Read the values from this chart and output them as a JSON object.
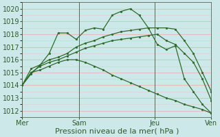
{
  "background_color": "#cce8e8",
  "plot_bg_color": "#cce8e8",
  "grid_color_major": "#e8b8b8",
  "grid_color_minor": "#e8c8c8",
  "line_color": "#2d6a2d",
  "marker_color": "#2d6a2d",
  "xlabel": "Pression niveau de la mer( hPa )",
  "ylim": [
    1011.5,
    1020.5
  ],
  "yticks": [
    1012,
    1013,
    1014,
    1015,
    1016,
    1017,
    1018,
    1019,
    1020
  ],
  "xtick_labels": [
    "Mer",
    "Sam",
    "Jeu",
    "Ven"
  ],
  "xtick_positions": [
    0,
    3,
    7,
    10
  ],
  "series": [
    [
      1014.0,
      1014.9,
      1015.6,
      1016.5,
      1018.1,
      1018.1,
      1017.6,
      1018.3,
      1018.5,
      1018.4,
      1019.5,
      1019.8,
      1020.0,
      1019.5,
      1018.5,
      1017.2,
      1016.8,
      1017.1,
      1014.5,
      1013.5,
      1012.5,
      1011.8
    ],
    [
      1014.0,
      1015.3,
      1015.6,
      1016.0,
      1016.2,
      1016.5,
      1017.0,
      1017.3,
      1017.5,
      1017.8,
      1018.0,
      1018.2,
      1018.3,
      1018.4,
      1018.5,
      1018.5,
      1018.5,
      1018.4,
      1017.5,
      1016.5,
      1015.0,
      1013.5
    ],
    [
      1014.0,
      1015.0,
      1015.5,
      1015.8,
      1016.0,
      1016.3,
      1016.6,
      1016.9,
      1017.1,
      1017.3,
      1017.5,
      1017.6,
      1017.7,
      1017.8,
      1017.9,
      1018.0,
      1017.5,
      1017.2,
      1016.5,
      1015.8,
      1014.5,
      1012.8
    ],
    [
      1014.0,
      1015.0,
      1015.2,
      1015.5,
      1015.8,
      1016.0,
      1016.0,
      1015.8,
      1015.5,
      1015.2,
      1014.8,
      1014.5,
      1014.2,
      1013.9,
      1013.6,
      1013.3,
      1013.0,
      1012.8,
      1012.5,
      1012.3,
      1012.1,
      1011.8
    ]
  ],
  "vline_positions": [
    0,
    3,
    7,
    10
  ],
  "xlabel_fontsize": 8,
  "tick_fontsize": 7,
  "figsize": [
    3.2,
    2.0
  ],
  "dpi": 100
}
